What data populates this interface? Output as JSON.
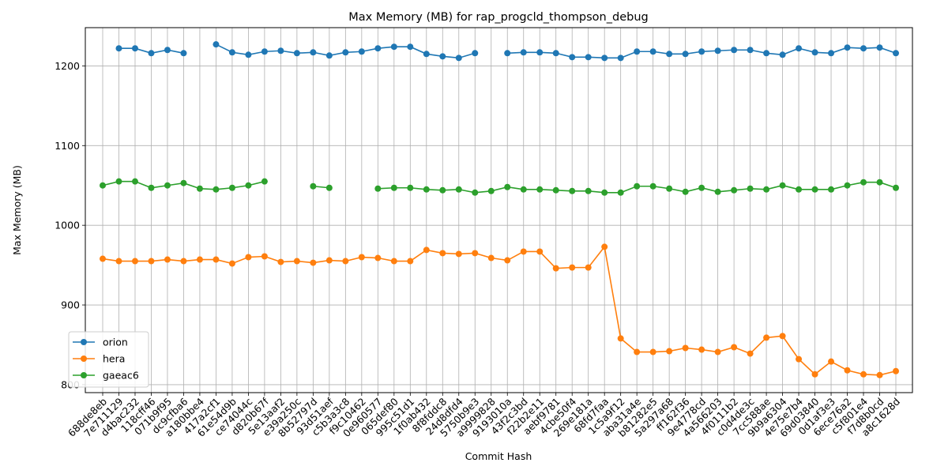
{
  "chart_data": {
    "type": "line",
    "title": "Max Memory (MB) for rap_progcld_thompson_debug",
    "xlabel": "Commit Hash",
    "ylabel": "Max Memory (MB)",
    "ylim": [
      790,
      1248
    ],
    "yticks": [
      800,
      900,
      1000,
      1100,
      1200
    ],
    "grid": true,
    "legend_position": "lower-left",
    "categories": [
      "688de8eb",
      "7e711129",
      "d4bac232",
      "118cff46",
      "071b9f95",
      "dc9cfba6",
      "a180bbe4",
      "417a2cf1",
      "61e54d9b",
      "ce74044c",
      "d820b67f",
      "5e13aaf2",
      "e39a250c",
      "8b52797d",
      "93d51aef",
      "c5b3a3c8",
      "f9c10462",
      "0e960577",
      "065def80",
      "995c51d1",
      "1f0ab432",
      "8f8fddc8",
      "24d8dfd4",
      "5750b9e3",
      "a9999828",
      "9193010a",
      "43f2c3bd",
      "f22b2e11",
      "aebf9781",
      "4cbe50f4",
      "269e181a",
      "68fd7faa",
      "1c5a9f12",
      "aba31a4e",
      "b81282e5",
      "5a297a68",
      "ff162f36",
      "9e4778cd",
      "4a566203",
      "4f0111b2",
      "c0d4de3c",
      "7cc588ae",
      "9b9a6304",
      "4e75e7b4",
      "69d03840",
      "0d1af3e3",
      "6ece76a2",
      "c5f801e4",
      "f7d8b0cd",
      "a8c1628d"
    ],
    "series": [
      {
        "name": "orion",
        "color": "#1f77b4",
        "values": [
          null,
          1222,
          1222,
          1216,
          1220,
          1216,
          null,
          1227,
          1217,
          1214,
          1218,
          1219,
          1216,
          1217,
          1213,
          1217,
          1218,
          1222,
          1224,
          1224,
          1215,
          1212,
          1210,
          1216,
          null,
          1216,
          1217,
          1217,
          1216,
          1211,
          1211,
          1210,
          1210,
          1218,
          1218,
          1215,
          1215,
          1218,
          1219,
          1220,
          1220,
          1216,
          1214,
          1222,
          1217,
          1216,
          1223,
          1222,
          1223,
          1216
        ]
      },
      {
        "name": "hera",
        "color": "#ff7f0e",
        "values": [
          958,
          955,
          955,
          955,
          957,
          955,
          957,
          957,
          952,
          960,
          961,
          954,
          955,
          953,
          956,
          955,
          960,
          959,
          955,
          955,
          969,
          965,
          964,
          965,
          959,
          956,
          967,
          967,
          946,
          947,
          947,
          973,
          858,
          841,
          841,
          842,
          846,
          844,
          841,
          847,
          839,
          859,
          861,
          832,
          813,
          829,
          818,
          813,
          812,
          817
        ]
      },
      {
        "name": "gaeac6",
        "color": "#2ca02c",
        "values": [
          1050,
          1055,
          1055,
          1047,
          1050,
          1053,
          1046,
          1045,
          1047,
          1050,
          1055,
          null,
          null,
          1049,
          1047,
          null,
          null,
          1046,
          1047,
          1047,
          1045,
          1044,
          1045,
          1041,
          1043,
          1048,
          1045,
          1045,
          1044,
          1043,
          1043,
          1041,
          1041,
          1049,
          1049,
          1046,
          1042,
          1047,
          1042,
          1044,
          1046,
          1045,
          1050,
          1045,
          1045,
          1045,
          1050,
          1054,
          1054,
          1047
        ]
      }
    ]
  }
}
